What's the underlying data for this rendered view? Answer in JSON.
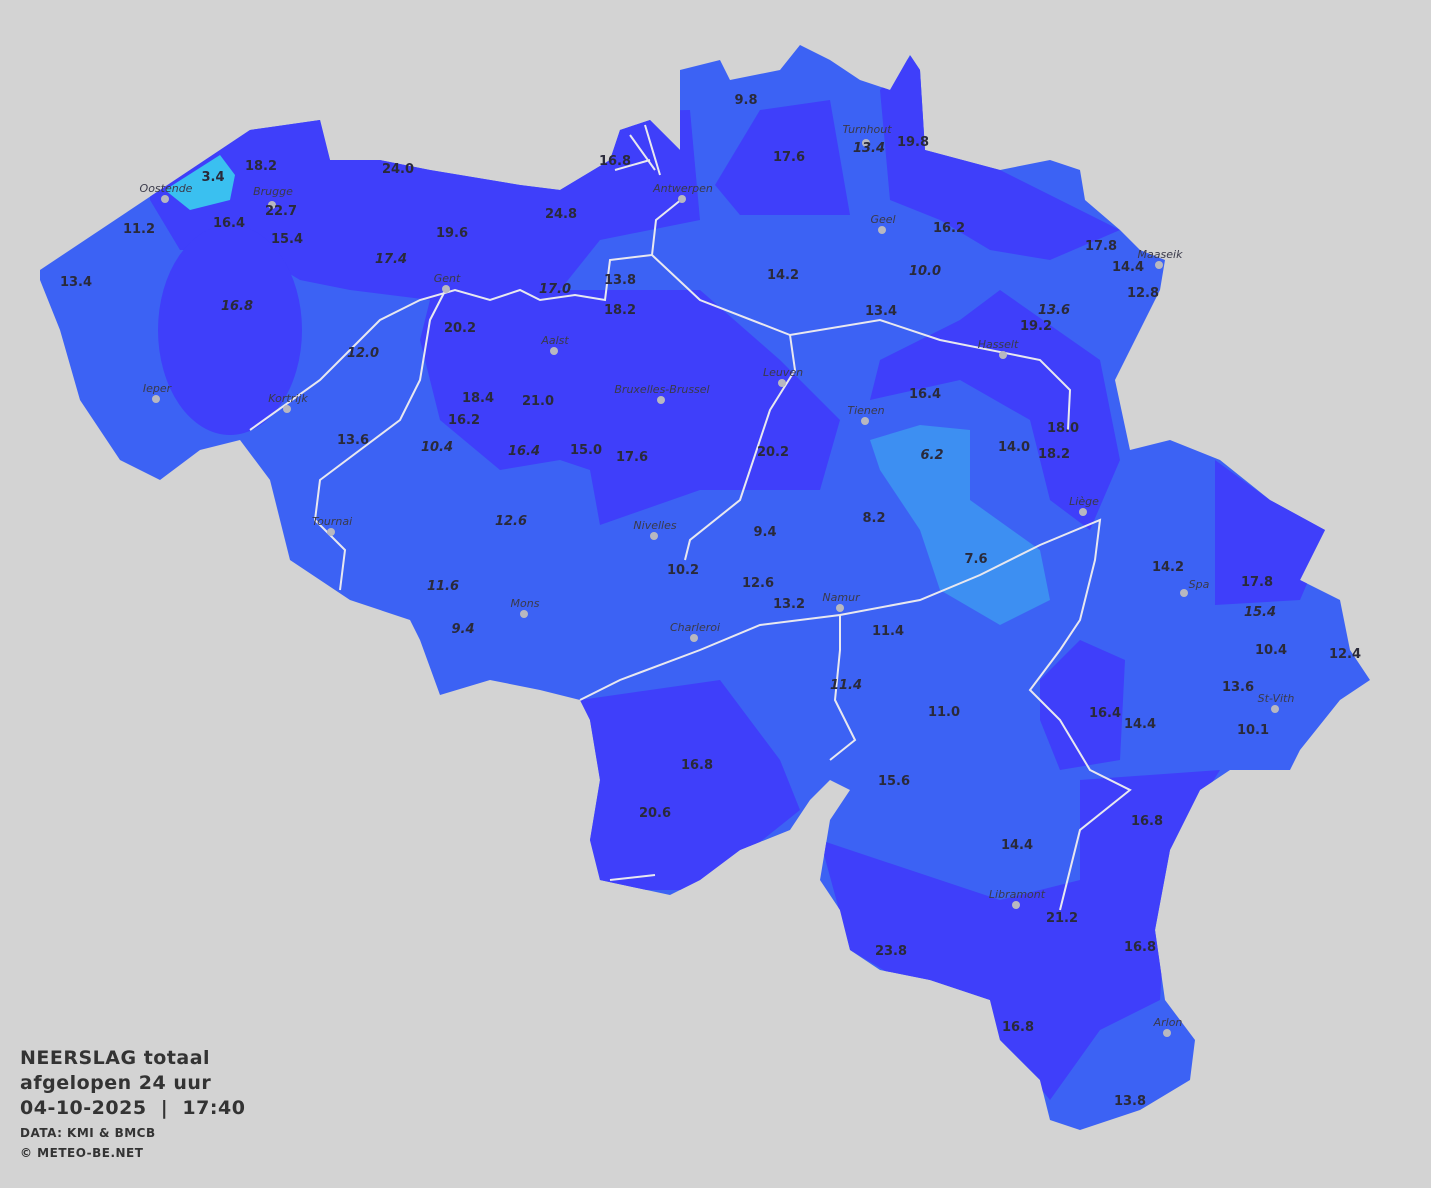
{
  "legend": {
    "title_line1": "NEERSLAG totaal",
    "title_line2": "afgelopen 24 uur",
    "datetime": "04-10-2025  |  17:40",
    "source": "DATA: KMI & BMCB",
    "copyright": "© METEO-BE.NET"
  },
  "colors": {
    "background": "#d3d3d3",
    "heavy": "#3f3ffa",
    "medium": "#3c62f4",
    "light": "#3d8ff2",
    "very_light": "#3ac0f0",
    "rivers": "#e8e8f0"
  },
  "cities": [
    "Oostende",
    "Brugge",
    "Antwerpen",
    "Turnhout",
    "Geel",
    "Maaseik",
    "Gent",
    "Aalst",
    "Hasselt",
    "Leuven",
    "Bruxelles-Brussel",
    "Ieper",
    "Kortrijk",
    "Tienen",
    "Liège",
    "Tournai",
    "Nivelles",
    "Spa",
    "Mons",
    "Namur",
    "Charleroi",
    "St-Vith",
    "Libramont",
    "Arlon"
  ],
  "stations": [
    {
      "v": "3.4"
    },
    {
      "v": "18.2"
    },
    {
      "v": "24.0"
    },
    {
      "v": "22.7"
    },
    {
      "v": "16.4"
    },
    {
      "v": "11.2"
    },
    {
      "v": "15.4"
    },
    {
      "v": "19.6"
    },
    {
      "v": "24.8"
    },
    {
      "v": "16.8"
    },
    {
      "v": "9.8"
    },
    {
      "v": "17.6"
    },
    {
      "v": "13.4",
      "italic": true
    },
    {
      "v": "19.8"
    },
    {
      "v": "16.2"
    },
    {
      "v": "17.8"
    },
    {
      "v": "14.4"
    },
    {
      "v": "12.8"
    },
    {
      "v": "14.2"
    },
    {
      "v": "10.0",
      "italic": true
    },
    {
      "v": "13.4"
    },
    {
      "v": "13.6",
      "italic": true
    },
    {
      "v": "19.2"
    },
    {
      "v": "13.8"
    },
    {
      "v": "18.2"
    },
    {
      "v": "17.0",
      "italic": true
    },
    {
      "v": "17.4",
      "italic": true
    },
    {
      "v": "13.4"
    },
    {
      "v": "16.8",
      "italic": true
    },
    {
      "v": "20.2"
    },
    {
      "v": "12.0",
      "italic": true
    },
    {
      "v": "18.4"
    },
    {
      "v": "21.0"
    },
    {
      "v": "16.2"
    },
    {
      "v": "13.6"
    },
    {
      "v": "10.4",
      "italic": true
    },
    {
      "v": "16.4",
      "italic": true
    },
    {
      "v": "15.0"
    },
    {
      "v": "17.6"
    },
    {
      "v": "20.2"
    },
    {
      "v": "16.4"
    },
    {
      "v": "18.0"
    },
    {
      "v": "14.0"
    },
    {
      "v": "18.2"
    },
    {
      "v": "6.2",
      "italic": true
    },
    {
      "v": "8.2"
    },
    {
      "v": "9.4"
    },
    {
      "v": "12.6",
      "italic": true
    },
    {
      "v": "10.2"
    },
    {
      "v": "7.6"
    },
    {
      "v": "11.6",
      "italic": true
    },
    {
      "v": "12.6"
    },
    {
      "v": "13.2"
    },
    {
      "v": "9.4",
      "italic": true
    },
    {
      "v": "11.4"
    },
    {
      "v": "14.2"
    },
    {
      "v": "17.8"
    },
    {
      "v": "15.4",
      "italic": true
    },
    {
      "v": "10.4"
    },
    {
      "v": "12.4"
    },
    {
      "v": "13.6"
    },
    {
      "v": "10.1"
    },
    {
      "v": "16.4"
    },
    {
      "v": "14.4"
    },
    {
      "v": "11.4",
      "italic": true
    },
    {
      "v": "11.0"
    },
    {
      "v": "16.8"
    },
    {
      "v": "15.6"
    },
    {
      "v": "20.6"
    },
    {
      "v": "16.8"
    },
    {
      "v": "14.4"
    },
    {
      "v": "21.2"
    },
    {
      "v": "23.8"
    },
    {
      "v": "16.8"
    },
    {
      "v": "16.8"
    },
    {
      "v": "13.8"
    }
  ]
}
